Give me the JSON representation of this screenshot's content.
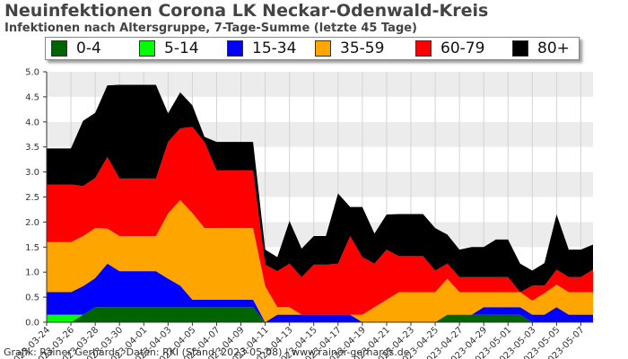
{
  "header": {
    "title": "Neuinfektionen Corona LK Neckar-Odenwald-Kreis",
    "subtitle": "Infektionen nach Altersgruppe, 7-Tage-Summe (letzte 45 Tage)"
  },
  "footer": {
    "credit": "Grafik: Rainer Gerhards, Daten: RKI (Stand: 2023-05-08) | www.rainer-gerhards.de"
  },
  "chart_data": {
    "type": "area",
    "stacked": true,
    "title": "Neuinfektionen Corona LK Neckar-Odenwald-Kreis",
    "subtitle": "Infektionen nach Altersgruppe, 7-Tage-Summe (letzte 45 Tage)",
    "xlabel": "",
    "ylabel": "",
    "ylim": [
      0,
      5
    ],
    "yticks": [
      "0.0",
      "0.5",
      "1.0",
      "1.5",
      "2.0",
      "2.5",
      "3.0",
      "3.5",
      "4.0",
      "4.5",
      "5.0"
    ],
    "grid": "horizontal-bands",
    "legend_position": "top",
    "x": [
      "2023-03-24",
      "2023-03-25",
      "2023-03-26",
      "2023-03-27",
      "2023-03-28",
      "2023-03-29",
      "2023-03-30",
      "2023-03-31",
      "2023-04-01",
      "2023-04-02",
      "2023-04-03",
      "2023-04-04",
      "2023-04-05",
      "2023-04-06",
      "2023-04-07",
      "2023-04-08",
      "2023-04-09",
      "2023-04-10",
      "2023-04-11",
      "2023-04-12",
      "2023-04-13",
      "2023-04-14",
      "2023-04-15",
      "2023-04-16",
      "2023-04-17",
      "2023-04-18",
      "2023-04-19",
      "2023-04-20",
      "2023-04-21",
      "2023-04-22",
      "2023-04-23",
      "2023-04-24",
      "2023-04-25",
      "2023-04-26",
      "2023-04-27",
      "2023-04-28",
      "2023-04-29",
      "2023-04-30",
      "2023-05-01",
      "2023-05-02",
      "2023-05-03",
      "2023-05-04",
      "2023-05-05",
      "2023-05-06",
      "2023-05-07",
      "2023-05-08"
    ],
    "xtick_labels": [
      "2023-03-24",
      "2023-03-26",
      "2023-03-28",
      "2023-03-30",
      "2023-04-01",
      "2023-04-03",
      "2023-04-05",
      "2023-04-07",
      "2023-04-09",
      "2023-04-11",
      "2023-04-13",
      "2023-04-15",
      "2023-04-17",
      "2023-04-19",
      "2023-04-21",
      "2023-04-23",
      "2023-04-25",
      "2023-04-27",
      "2023-04-29",
      "2023-05-01",
      "2023-05-03",
      "2023-05-05",
      "2023-05-07"
    ],
    "series": [
      {
        "name": "0-4",
        "color": "#006400",
        "values": [
          0,
          0,
          0,
          0.15,
          0.3,
          0.3,
          0.3,
          0.3,
          0.3,
          0.3,
          0.3,
          0.3,
          0.3,
          0.3,
          0.3,
          0.3,
          0.3,
          0.3,
          0,
          0,
          0,
          0,
          0,
          0,
          0,
          0,
          0,
          0,
          0,
          0,
          0,
          0,
          0,
          0.15,
          0.15,
          0.15,
          0.15,
          0.15,
          0.15,
          0.15,
          0,
          0,
          0,
          0,
          0,
          0
        ]
      },
      {
        "name": "5-14",
        "color": "#00ff00",
        "values": [
          0.15,
          0.15,
          0.15,
          0,
          0,
          0,
          0,
          0,
          0,
          0,
          0,
          0,
          0,
          0,
          0,
          0,
          0,
          0,
          0,
          0,
          0,
          0,
          0,
          0,
          0,
          0,
          0,
          0,
          0,
          0,
          0,
          0,
          0,
          0,
          0,
          0,
          0,
          0,
          0,
          0,
          0,
          0,
          0,
          0,
          0,
          0
        ]
      },
      {
        "name": "15-34",
        "color": "#0000ff",
        "values": [
          0.45,
          0.45,
          0.45,
          0.57,
          0.58,
          0.87,
          0.72,
          0.72,
          0.72,
          0.72,
          0.57,
          0.43,
          0.15,
          0.15,
          0.15,
          0.15,
          0.15,
          0.15,
          0,
          0.15,
          0.15,
          0.15,
          0.15,
          0.15,
          0.15,
          0.15,
          0,
          0,
          0,
          0,
          0,
          0,
          0,
          0,
          0,
          0,
          0.15,
          0.15,
          0.15,
          0.15,
          0.15,
          0.15,
          0.3,
          0.15,
          0.15,
          0.15
        ]
      },
      {
        "name": "35-59",
        "color": "#ffa500",
        "values": [
          1.0,
          1.0,
          1.0,
          1.0,
          1.0,
          0.7,
          0.7,
          0.7,
          0.7,
          0.7,
          1.3,
          1.71,
          1.73,
          1.43,
          1.43,
          1.43,
          1.43,
          1.43,
          0.72,
          0.15,
          0.15,
          0,
          0,
          0,
          0,
          0,
          0.15,
          0.3,
          0.45,
          0.6,
          0.6,
          0.6,
          0.6,
          0.72,
          0.45,
          0.45,
          0.3,
          0.3,
          0.3,
          0.3,
          0.28,
          0.43,
          0.45,
          0.45,
          0.45,
          0.45
        ]
      },
      {
        "name": "60-79",
        "color": "#ff0000",
        "values": [
          1.15,
          1.15,
          1.15,
          1.0,
          1.0,
          1.43,
          1.15,
          1.15,
          1.15,
          1.15,
          1.43,
          1.43,
          1.72,
          1.72,
          1.15,
          1.15,
          1.15,
          1.15,
          0.43,
          0.72,
          0.87,
          0.75,
          1.0,
          1.0,
          1.02,
          1.57,
          1.15,
          0.87,
          1.0,
          0.72,
          0.72,
          0.72,
          0.43,
          0.3,
          0.3,
          0.3,
          0.3,
          0.3,
          0.3,
          0,
          0.3,
          0.15,
          0.3,
          0.3,
          0.3,
          0.45
        ]
      },
      {
        "name": "80+",
        "color": "#000000",
        "values": [
          0.72,
          0.72,
          0.72,
          1.3,
          1.3,
          1.43,
          1.87,
          1.87,
          1.87,
          1.87,
          0.57,
          0.72,
          0.43,
          0.1,
          0.57,
          0.57,
          0.57,
          0.57,
          0.3,
          0.28,
          0.85,
          0.57,
          0.57,
          0.57,
          1.4,
          0.58,
          1.0,
          0.6,
          0.7,
          0.84,
          0.84,
          0.84,
          0.85,
          0.58,
          0.55,
          0.6,
          0.6,
          0.75,
          0.75,
          0.57,
          0.3,
          0.45,
          1.1,
          0.55,
          0.55,
          0.5
        ]
      }
    ]
  }
}
